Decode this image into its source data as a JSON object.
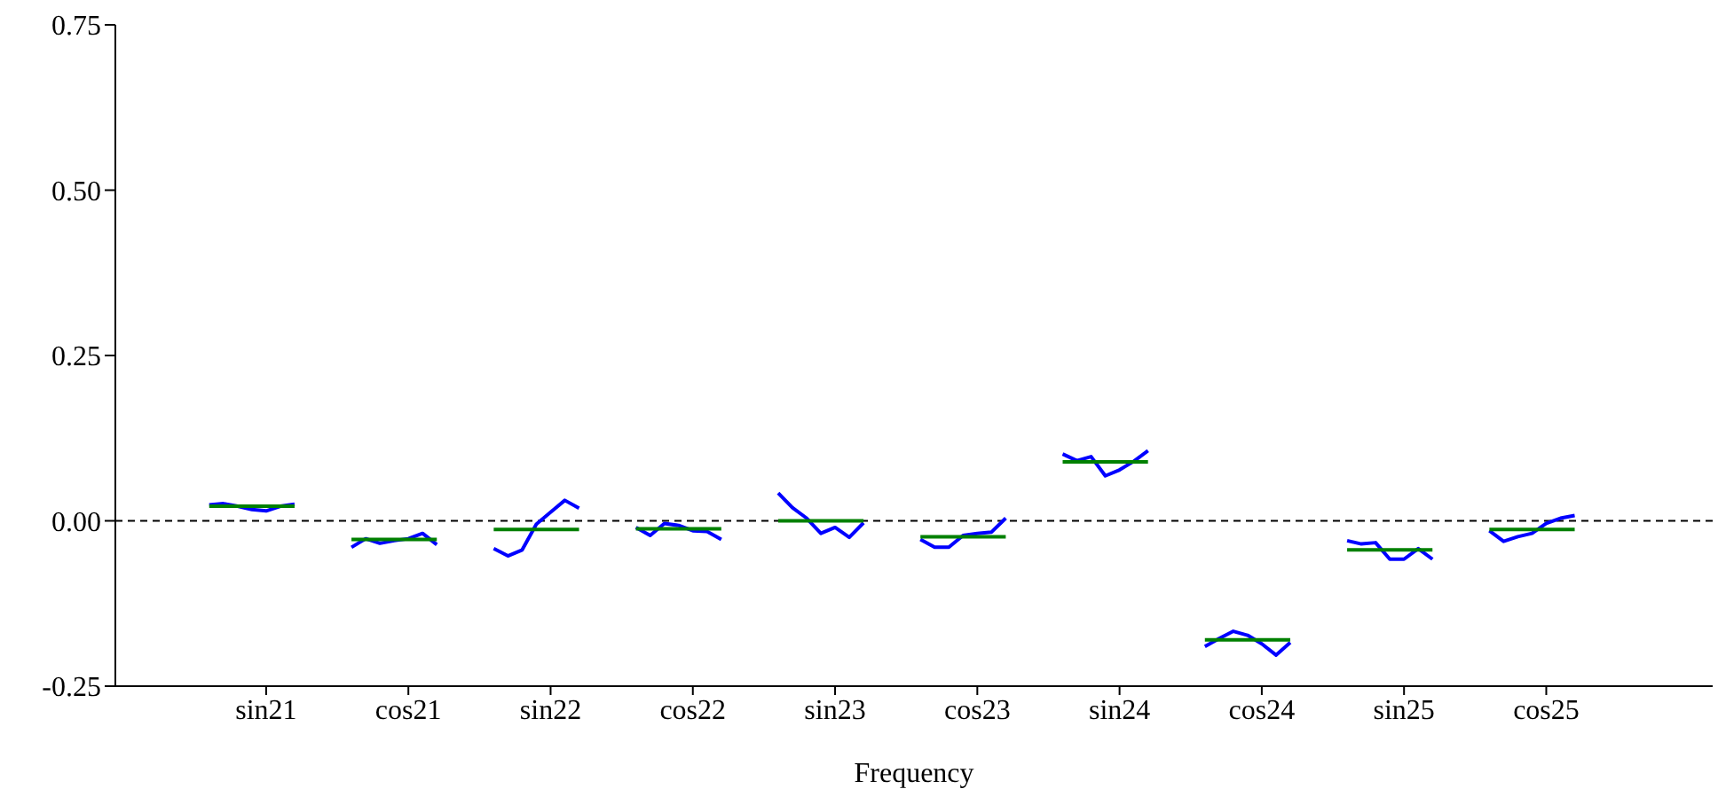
{
  "chart_data": {
    "type": "line",
    "xlabel": "Frequency",
    "categories": [
      null,
      null,
      null,
      null,
      "sin21",
      null,
      null,
      null,
      null,
      null,
      null,
      null,
      null,
      null,
      "cos21",
      null,
      null,
      null,
      null,
      null,
      null,
      null,
      null,
      null,
      "sin22",
      null,
      null,
      null,
      null,
      null,
      null,
      null,
      null,
      null,
      "cos22",
      null,
      null,
      null,
      null,
      null,
      null,
      null,
      null,
      null,
      "sin23",
      null,
      null,
      null,
      null,
      null,
      null,
      null,
      null,
      null,
      "cos23",
      null,
      null,
      null,
      null,
      null,
      null,
      null,
      null,
      null,
      "sin24",
      null,
      null,
      null,
      null,
      null,
      null,
      null,
      null,
      null,
      "cos24",
      null,
      null,
      null,
      null,
      null,
      null,
      null,
      null,
      null,
      "sin25",
      null,
      null,
      null,
      null,
      null,
      null,
      null,
      null,
      null,
      "cos25",
      null,
      null,
      null,
      null,
      null
    ],
    "ylim": [
      -0.25,
      0.75
    ],
    "yticks": [
      {
        "value": -0.25,
        "label": "-0.25"
      },
      {
        "value": 0,
        "label": "0.00"
      },
      {
        "value": 0.25,
        "label": "0.25"
      },
      {
        "value": 0.5,
        "label": "0.50"
      },
      {
        "value": 0.75,
        "label": "0.75"
      }
    ],
    "ref_lines": [
      {
        "axis": "y",
        "value": 0,
        "color": "#000000",
        "line_style": "dashed"
      }
    ],
    "series": [
      {
        "color": "#0000ff",
        "values": [
          0.024,
          0.026,
          0.022,
          0.017,
          0.015,
          0.022,
          0.025,
          null,
          null,
          null,
          -0.04,
          -0.027,
          -0.034,
          -0.03,
          -0.027,
          -0.019,
          -0.036,
          null,
          null,
          null,
          -0.042,
          -0.053,
          -0.044,
          -0.005,
          0.013,
          0.031,
          0.019,
          null,
          null,
          null,
          -0.01,
          -0.022,
          -0.004,
          -0.007,
          -0.015,
          -0.016,
          -0.028,
          null,
          null,
          null,
          0.042,
          0.02,
          0.004,
          -0.019,
          -0.01,
          -0.025,
          -0.003,
          null,
          null,
          null,
          -0.028,
          -0.04,
          -0.04,
          -0.022,
          -0.019,
          -0.017,
          0.004,
          null,
          null,
          null,
          0.101,
          0.091,
          0.097,
          0.068,
          0.077,
          0.09,
          0.106,
          null,
          null,
          null,
          -0.19,
          -0.178,
          -0.167,
          -0.173,
          -0.186,
          -0.203,
          -0.184,
          null,
          null,
          null,
          -0.03,
          -0.035,
          -0.033,
          -0.058,
          -0.058,
          -0.042,
          -0.058,
          null,
          null,
          null,
          -0.015,
          -0.031,
          -0.024,
          -0.019,
          -0.004,
          0.004,
          0.008,
          null,
          null,
          null
        ]
      },
      {
        "color": "#008000",
        "values": [
          0.022,
          0.022,
          0.022,
          0.022,
          0.022,
          0.022,
          0.022,
          null,
          null,
          null,
          -0.028,
          -0.028,
          -0.028,
          -0.028,
          -0.028,
          -0.028,
          -0.028,
          null,
          null,
          null,
          -0.013,
          -0.013,
          -0.013,
          -0.013,
          -0.013,
          -0.013,
          -0.013,
          null,
          null,
          null,
          -0.012,
          -0.012,
          -0.012,
          -0.012,
          -0.012,
          -0.012,
          -0.012,
          null,
          null,
          null,
          0.0,
          0.0,
          0.0,
          0.0,
          0.0,
          0.0,
          0.0,
          null,
          null,
          null,
          -0.024,
          -0.024,
          -0.024,
          -0.024,
          -0.024,
          -0.024,
          -0.024,
          null,
          null,
          null,
          0.089,
          0.089,
          0.089,
          0.089,
          0.089,
          0.089,
          0.089,
          null,
          null,
          null,
          -0.18,
          -0.18,
          -0.18,
          -0.18,
          -0.18,
          -0.18,
          -0.18,
          null,
          null,
          null,
          -0.044,
          -0.044,
          -0.044,
          -0.044,
          -0.044,
          -0.044,
          -0.044,
          null,
          null,
          null,
          -0.013,
          -0.013,
          -0.013,
          -0.013,
          -0.013,
          -0.013,
          -0.013,
          null,
          null,
          null
        ]
      }
    ]
  }
}
